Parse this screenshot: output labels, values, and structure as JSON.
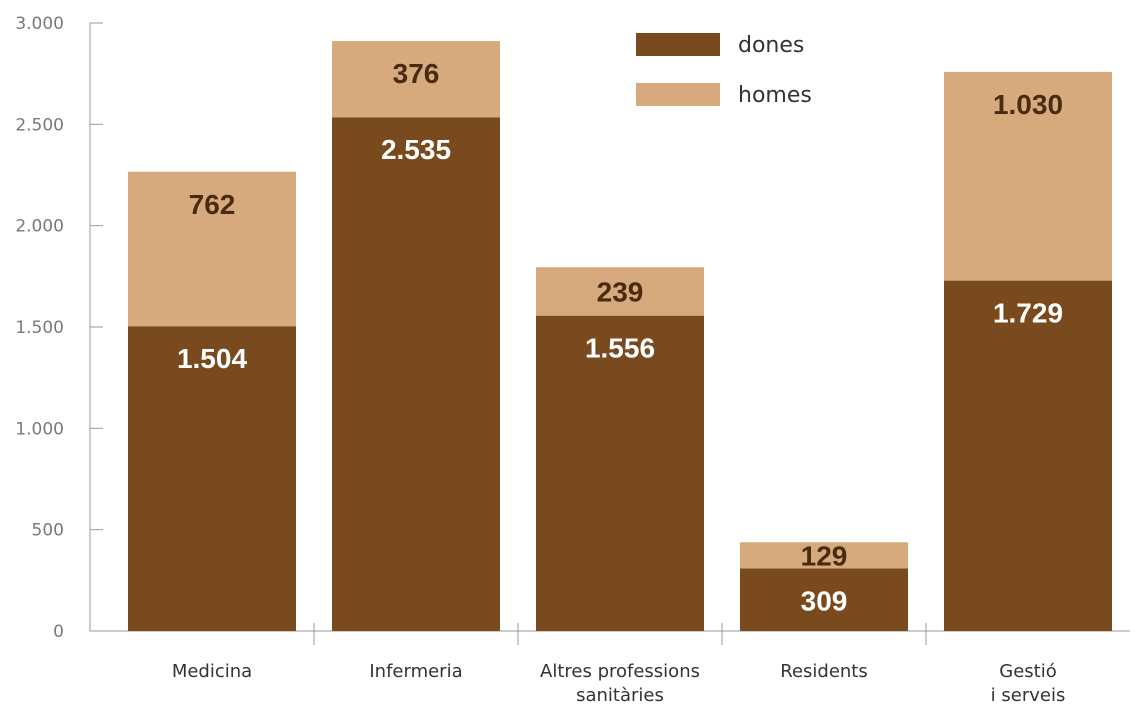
{
  "chart_data": {
    "type": "bar",
    "stacked": true,
    "title": "",
    "xlabel": "",
    "ylabel": "",
    "ylim": [
      0,
      3000
    ],
    "yticks": [
      0,
      500,
      1000,
      1500,
      2000,
      2500,
      3000
    ],
    "ytick_labels": [
      "0",
      "500",
      "1.000",
      "1.500",
      "2.000",
      "2.500",
      "3.000"
    ],
    "grid": false,
    "legend_position": "top-right",
    "categories": [
      [
        "Medicina"
      ],
      [
        "Infermeria"
      ],
      [
        "Altres professions",
        "sanitàries"
      ],
      [
        "Residents"
      ],
      [
        "Gestió",
        "i serveis"
      ]
    ],
    "series": [
      {
        "name": "dones",
        "color": "#794a1e",
        "label_color": "#ffffff",
        "values": [
          1504,
          2535,
          1556,
          309,
          1729
        ],
        "labels": [
          "1.504",
          "2.535",
          "1.556",
          "309",
          "1.729"
        ]
      },
      {
        "name": "homes",
        "color": "#d6aa7c",
        "label_color": "#4a2a10",
        "values": [
          762,
          376,
          239,
          129,
          1030
        ],
        "labels": [
          "762",
          "376",
          "239",
          "129",
          "1.030"
        ]
      }
    ]
  }
}
